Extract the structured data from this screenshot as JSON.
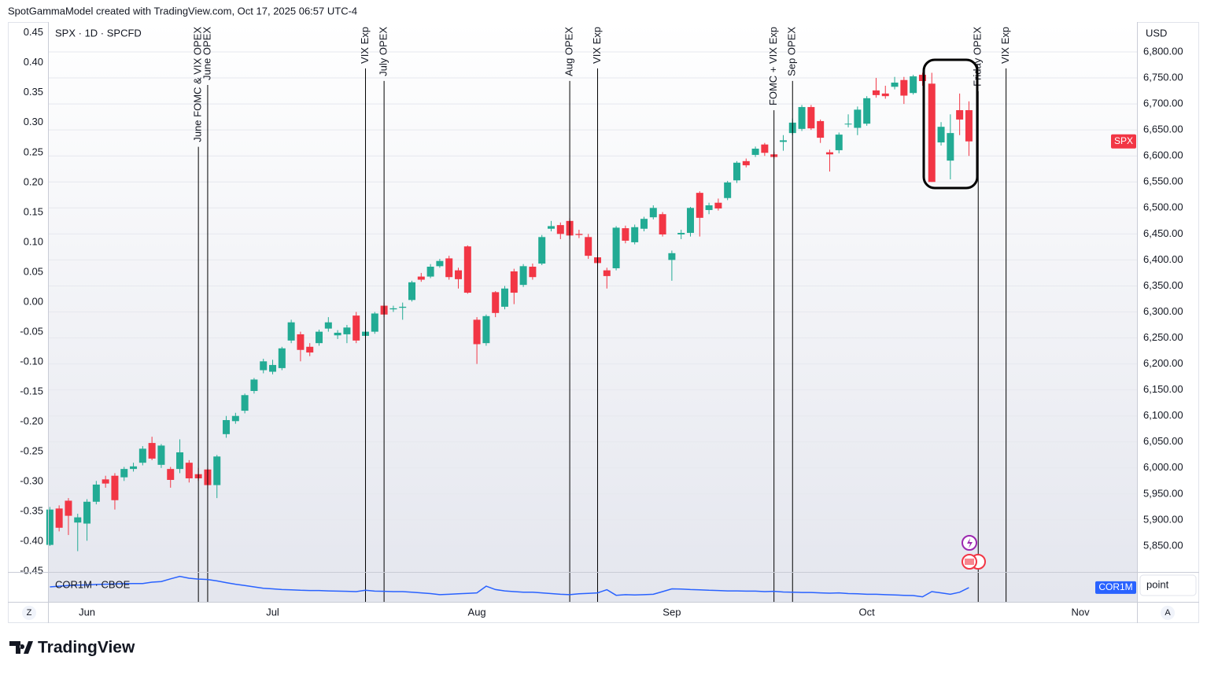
{
  "header": "SpotGammaModel created with TradingView.com, Oct 17, 2025 06:57 UTC-4",
  "footer": "TradingView",
  "controls": {
    "left_button": "Z",
    "right_button": "A",
    "scale_mode": "point",
    "currency": "USD"
  },
  "chart_data": [
    {
      "type": "candlestick",
      "title": "SPX · 1D · SPCFD",
      "last_price_label": "SPX",
      "up_color": "#22ab94",
      "down_color": "#f23645",
      "axis": "y2",
      "grid": true,
      "xlim": [
        -0.2,
        117.1
      ],
      "xticks": [
        {
          "value": 4,
          "label": "Jun"
        },
        {
          "value": 24,
          "label": "Jul"
        },
        {
          "value": 46,
          "label": "Aug"
        },
        {
          "value": 67,
          "label": "Sep"
        },
        {
          "value": 88,
          "label": "Oct"
        },
        {
          "value": 111,
          "label": "Nov"
        }
      ],
      "ylim": [
        -0.451,
        0.468
      ],
      "yticks": [
        0.45,
        {
          "value": 0.4,
          "label": "0.40"
        },
        0.35,
        {
          "value": 0.3,
          "label": "0.30"
        },
        0.25,
        {
          "value": 0.2,
          "label": "0.20"
        },
        0.15,
        {
          "value": 0.1,
          "label": "0.10"
        },
        0.05,
        {
          "value": 0,
          "label": "0.00"
        },
        -0.05,
        {
          "value": -0.1,
          "label": "-0.10"
        },
        -0.15,
        {
          "value": -0.2,
          "label": "-0.20"
        },
        -0.25,
        {
          "value": -0.3,
          "label": "-0.30"
        },
        -0.35,
        {
          "value": -0.4,
          "label": "-0.40"
        },
        -0.45
      ],
      "y2lim": [
        5800,
        6857.5
      ],
      "y2ticks": [
        {
          "value": 6800,
          "label": "6,800.00"
        },
        {
          "value": 6750,
          "label": "6,750.00"
        },
        {
          "value": 6700,
          "label": "6,700.00"
        },
        {
          "value": 6650,
          "label": "6,650.00"
        },
        {
          "value": 6600,
          "label": "6,600.00"
        },
        {
          "value": 6550,
          "label": "6,550.00"
        },
        {
          "value": 6500,
          "label": "6,500.00"
        },
        {
          "value": 6450,
          "label": "6,450.00"
        },
        {
          "value": 6400,
          "label": "6,400.00"
        },
        {
          "value": 6350,
          "label": "6,350.00"
        },
        {
          "value": 6300,
          "label": "6,300.00"
        },
        {
          "value": 6250,
          "label": "6,250.00"
        },
        {
          "value": 6200,
          "label": "6,200.00"
        },
        {
          "value": 6150,
          "label": "6,150.00"
        },
        {
          "value": 6100,
          "label": "6,100.00"
        },
        {
          "value": 6050,
          "label": "6,050.00"
        },
        {
          "value": 6000,
          "label": "6,000.00"
        },
        {
          "value": 5950,
          "label": "5,950.00"
        },
        {
          "value": 5900,
          "label": "5,900.00"
        },
        {
          "value": 5850,
          "label": "5,850.00"
        }
      ],
      "open": [
        5852,
        5922,
        5937,
        5895,
        5893,
        5935,
        5978,
        5985,
        5982,
        5998,
        6010,
        6048,
        6006,
        5998,
        5998,
        6010,
        5988,
        5997,
        5967,
        6065,
        6090,
        6110,
        6148,
        6188,
        6185,
        6192,
        6245,
        6257,
        6233,
        6240,
        6268,
        6255,
        6257,
        6293,
        6254,
        6262,
        6312,
        6305,
        6308,
        6323,
        6368,
        6368,
        6388,
        6403,
        6380,
        6426,
        6285,
        6240,
        6338,
        6310,
        6378,
        6352,
        6387,
        6393,
        6460,
        6467,
        6475,
        6450,
        6444,
        6405,
        6380,
        6384,
        6461,
        6434,
        6460,
        6482,
        6488,
        6400,
        6449,
        6452,
        6529,
        6496,
        6510,
        6519,
        6553,
        6590,
        6602,
        6622,
        6603,
        6627,
        6644,
        6652,
        6694,
        6667,
        6607,
        6611,
        6661,
        6654,
        6662,
        6726,
        6720,
        6733,
        6746,
        6721,
        6756,
        6739,
        6626,
        6591,
        6688,
        6688
      ],
      "high": [
        5925,
        5928,
        5942,
        5912,
        5940,
        5975,
        5985,
        5990,
        6002,
        6010,
        6042,
        6060,
        6046,
        6002,
        6055,
        6015,
        6000,
        6000,
        6025,
        6100,
        6106,
        6143,
        6173,
        6210,
        6208,
        6233,
        6285,
        6262,
        6240,
        6266,
        6290,
        6265,
        6275,
        6300,
        6280,
        6300,
        6318,
        6312,
        6318,
        6360,
        6375,
        6392,
        6402,
        6408,
        6385,
        6428,
        6290,
        6295,
        6340,
        6350,
        6383,
        6392,
        6393,
        6448,
        6475,
        6472,
        6480,
        6458,
        6450,
        6412,
        6385,
        6465,
        6466,
        6468,
        6483,
        6505,
        6492,
        6418,
        6458,
        6502,
        6532,
        6510,
        6518,
        6552,
        6590,
        6595,
        6618,
        6625,
        6608,
        6640,
        6672,
        6698,
        6698,
        6670,
        6612,
        6645,
        6680,
        6695,
        6715,
        6750,
        6735,
        6752,
        6752,
        6756,
        6760,
        6760,
        6665,
        6680,
        6720,
        6705
      ],
      "low": [
        5850,
        5878,
        5871,
        5840,
        5860,
        5930,
        5962,
        5920,
        5975,
        5993,
        6005,
        6015,
        6000,
        5962,
        5990,
        5972,
        5975,
        5960,
        5942,
        6058,
        6085,
        6105,
        6143,
        6182,
        6180,
        6188,
        6240,
        6205,
        6215,
        6235,
        6262,
        6248,
        6240,
        6240,
        6250,
        6258,
        6290,
        6300,
        6285,
        6320,
        6358,
        6365,
        6385,
        6362,
        6345,
        6335,
        6200,
        6235,
        6290,
        6305,
        6315,
        6348,
        6362,
        6390,
        6455,
        6440,
        6440,
        6442,
        6402,
        6385,
        6345,
        6380,
        6432,
        6430,
        6455,
        6478,
        6445,
        6360,
        6440,
        6445,
        6445,
        6488,
        6495,
        6515,
        6548,
        6578,
        6598,
        6600,
        6594,
        6610,
        6640,
        6648,
        6650,
        6625,
        6570,
        6605,
        6655,
        6640,
        6658,
        6712,
        6710,
        6728,
        6700,
        6718,
        6735,
        6550,
        6620,
        6555,
        6640,
        6600
      ],
      "close": [
        5920,
        5885,
        5908,
        5905,
        5935,
        5968,
        5970,
        5938,
        5998,
        6003,
        6037,
        6018,
        6043,
        5977,
        6030,
        5980,
        5980,
        5967,
        6022,
        6092,
        6100,
        6140,
        6170,
        6205,
        6198,
        6230,
        6280,
        6227,
        6222,
        6262,
        6280,
        6260,
        6270,
        6245,
        6262,
        6297,
        6295,
        6307,
        6310,
        6357,
        6362,
        6387,
        6398,
        6367,
        6363,
        6337,
        6238,
        6292,
        6298,
        6345,
        6337,
        6388,
        6367,
        6444,
        6465,
        6450,
        6447,
        6448,
        6408,
        6394,
        6369,
        6462,
        6437,
        6463,
        6479,
        6500,
        6449,
        6413,
        6452,
        6500,
        6481,
        6505,
        6499,
        6549,
        6587,
        6582,
        6614,
        6606,
        6598,
        6630,
        6664,
        6694,
        6653,
        6635,
        6603,
        6641,
        6662,
        6689,
        6711,
        6717,
        6715,
        6741,
        6716,
        6753,
        6744,
        6550,
        6656,
        6644,
        6670,
        6628
      ],
      "events": [
        {
          "x": 16,
          "label": "June FOMC & VIX OPEX"
        },
        {
          "x": 17,
          "label": "June OPEX"
        },
        {
          "x": 34,
          "label": "VIX Exp"
        },
        {
          "x": 36,
          "label": "July OPEX"
        },
        {
          "x": 56,
          "label": "Aug OPEX"
        },
        {
          "x": 59,
          "label": "VIX Exp"
        },
        {
          "x": 78,
          "label": "FOMC + VIX Exp"
        },
        {
          "x": 80,
          "label": "Sep OPEX"
        },
        {
          "x": 100,
          "label": "Friday OPEX"
        },
        {
          "x": 103,
          "label": "VIX Exp"
        }
      ]
    },
    {
      "type": "line",
      "title": "COR1M · CBOE",
      "last_value_label": "COR1M",
      "color": "#2962ff",
      "ylim": [
        5,
        25
      ],
      "values": [
        15,
        15.5,
        16,
        16.3,
        16.5,
        16.8,
        17,
        17.2,
        17.4,
        17.5,
        17.5,
        18.5,
        19,
        21,
        22.9,
        21.5,
        20.8,
        20.5,
        19.5,
        18.2,
        17,
        16,
        15,
        14,
        13.5,
        13,
        12.8,
        12.5,
        12.3,
        12.3,
        12,
        11.8,
        11.7,
        11.5,
        12.5,
        11.8,
        11.7,
        11.5,
        11.5,
        11,
        10.5,
        10,
        9.2,
        9.5,
        9.8,
        10.2,
        10.5,
        15.5,
        13,
        12,
        11.5,
        11,
        11,
        10.5,
        10,
        9.5,
        9.2,
        9.8,
        10.2,
        10.5,
        12.9,
        8.7,
        9.2,
        9,
        9.2,
        9.5,
        11.5,
        13.5,
        13.4,
        13,
        12.8,
        12.5,
        12.3,
        12,
        12,
        11.8,
        11.8,
        11.5,
        11.7,
        11.2,
        11,
        10.8,
        10.8,
        10.5,
        10.3,
        10.5,
        10,
        9.8,
        9.5,
        9.5,
        9.2,
        9,
        8.7,
        8.5,
        7.6,
        11.5,
        10.5,
        9.5,
        11,
        14.5
      ]
    }
  ]
}
